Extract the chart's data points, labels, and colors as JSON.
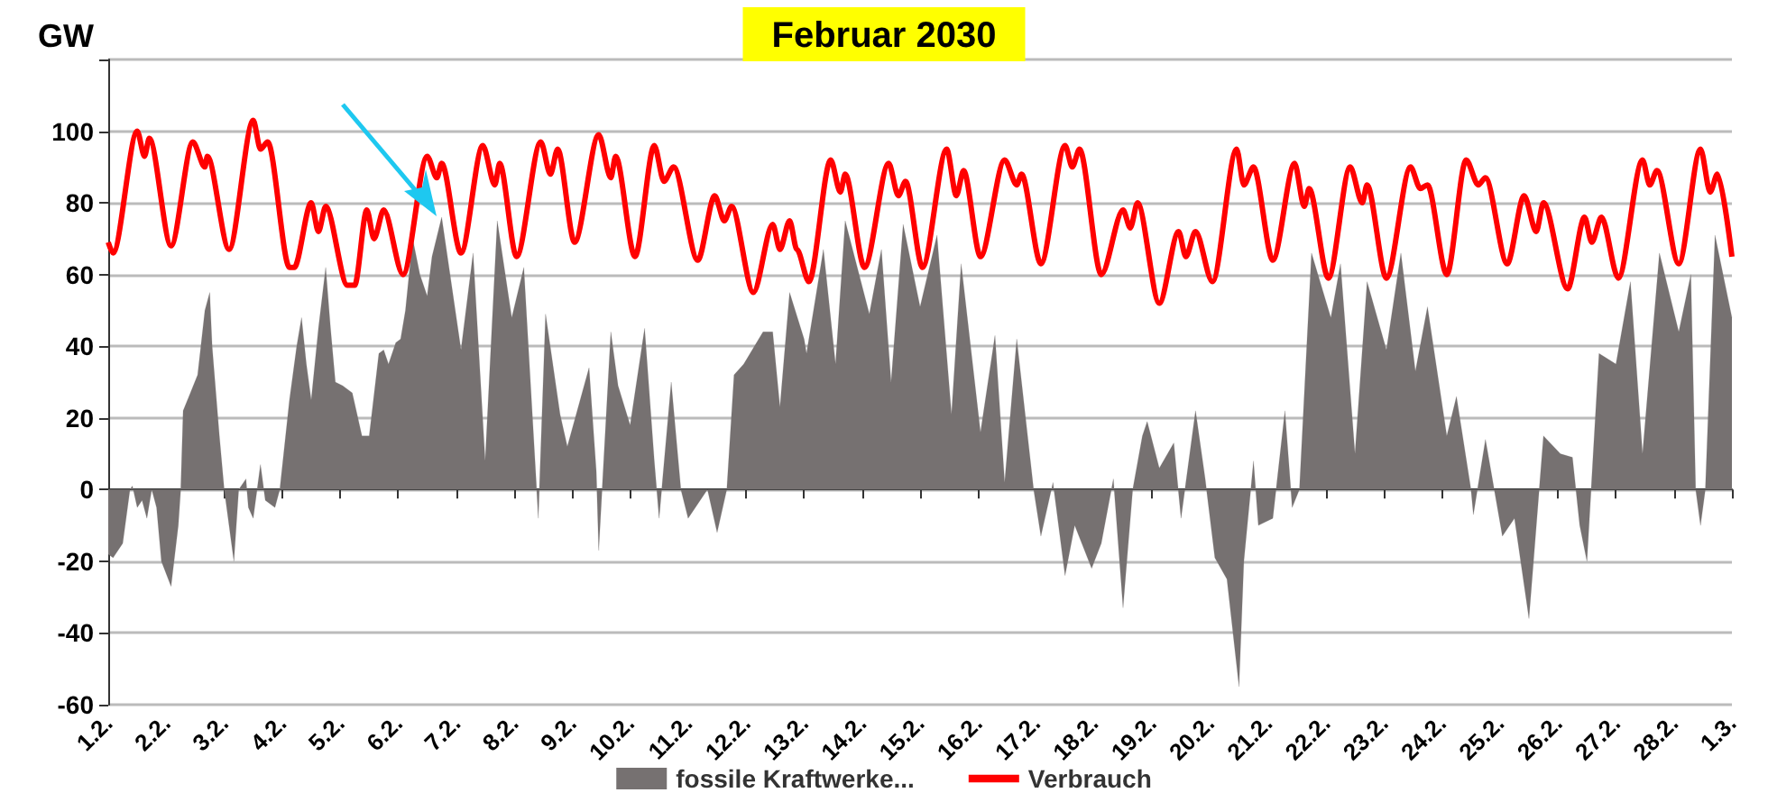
{
  "chart_data": {
    "type": "line",
    "title": "Februar 2030",
    "ylabel": "GW",
    "xlim": [
      "2030-02-01",
      "2030-03-01"
    ],
    "xticks": [
      {
        "value": "2030-02-01",
        "label": "1.2."
      },
      {
        "value": "2030-02-02",
        "label": "2.2."
      },
      {
        "value": "2030-02-03",
        "label": "3.2."
      },
      {
        "value": "2030-02-04",
        "label": "4.2."
      },
      {
        "value": "2030-02-05",
        "label": "5.2."
      },
      {
        "value": "2030-02-06",
        "label": "6.2."
      },
      {
        "value": "2030-02-07",
        "label": "7.2."
      },
      {
        "value": "2030-02-08",
        "label": "8.2."
      },
      {
        "value": "2030-02-09",
        "label": "9.2."
      },
      {
        "value": "2030-02-10",
        "label": "10.2."
      },
      {
        "value": "2030-02-11",
        "label": "11.2."
      },
      {
        "value": "2030-02-12",
        "label": "12.2."
      },
      {
        "value": "2030-02-13",
        "label": "13.2."
      },
      {
        "value": "2030-02-14",
        "label": "14.2."
      },
      {
        "value": "2030-02-15",
        "label": "15.2."
      },
      {
        "value": "2030-02-16",
        "label": "16.2."
      },
      {
        "value": "2030-02-17",
        "label": "17.2."
      },
      {
        "value": "2030-02-18",
        "label": "18.2."
      },
      {
        "value": "2030-02-19",
        "label": "19.2."
      },
      {
        "value": "2030-02-20",
        "label": "20.2."
      },
      {
        "value": "2030-02-21",
        "label": "21.2."
      },
      {
        "value": "2030-02-22",
        "label": "22.2."
      },
      {
        "value": "2030-02-23",
        "label": "23.2."
      },
      {
        "value": "2030-02-24",
        "label": "24.2."
      },
      {
        "value": "2030-02-25",
        "label": "25.2."
      },
      {
        "value": "2030-02-26",
        "label": "26.2."
      },
      {
        "value": "2030-02-27",
        "label": "27.2."
      },
      {
        "value": "2030-02-28",
        "label": "28.2."
      },
      {
        "value": "2030-03-01",
        "label": "1.3."
      }
    ],
    "ylim": [
      -60,
      120
    ],
    "yticks": [
      -60,
      -40,
      -20,
      0,
      20,
      40,
      60,
      80,
      100,
      {
        "value": 120,
        "label": null
      }
    ],
    "grid": "y",
    "legend": "bottom",
    "marker": "none",
    "line_style": "solid",
    "series": [
      {
        "name": "fossile Kraftwerke...",
        "type": "area",
        "color": "#767171",
        "x": [
          "2030-02-01T00:00",
          "2030-02-01T02:00",
          "2030-02-01T06:00",
          "2030-02-01T09:00",
          "2030-02-01T10:00",
          "2030-02-01T12:00",
          "2030-02-01T14:00",
          "2030-02-01T16:00",
          "2030-02-01T18:00",
          "2030-02-01T20:00",
          "2030-02-01T22:00",
          "2030-02-02T02:00",
          "2030-02-02T05:00",
          "2030-02-02T06:00",
          "2030-02-02T07:00",
          "2030-02-02T10:00",
          "2030-02-02T13:00",
          "2030-02-02T16:00",
          "2030-02-02T18:00",
          "2030-02-02T19:00",
          "2030-02-02T22:00",
          "2030-02-03T00:00",
          "2030-02-03T02:00",
          "2030-02-03T04:00",
          "2030-02-03T06:00",
          "2030-02-03T09:00",
          "2030-02-03T10:00",
          "2030-02-03T12:00",
          "2030-02-03T15:00",
          "2030-02-03T17:00",
          "2030-02-03T21:00",
          "2030-02-03T23:00",
          "2030-02-04T03:00",
          "2030-02-04T06:00",
          "2030-02-04T08:00",
          "2030-02-04T10:00",
          "2030-02-04T12:00",
          "2030-02-04T15:00",
          "2030-02-04T18:00",
          "2030-02-04T20:00",
          "2030-02-04T22:00",
          "2030-02-05T01:00",
          "2030-02-05T05:00",
          "2030-02-05T09:00",
          "2030-02-05T12:00",
          "2030-02-05T16:00",
          "2030-02-05T18:00",
          "2030-02-05T20:00",
          "2030-02-05T23:00",
          "2030-02-06T01:00",
          "2030-02-06T03:00",
          "2030-02-06T06:00",
          "2030-02-06T09:00",
          "2030-02-06T12:00",
          "2030-02-06T14:00",
          "2030-02-06T18:00",
          "2030-02-07T02:00",
          "2030-02-07T07:00",
          "2030-02-07T12:00",
          "2030-02-07T17:00",
          "2030-02-07T23:00",
          "2030-02-08T04:00",
          "2030-02-08T10:00",
          "2030-02-08T13:00",
          "2030-02-08T19:00",
          "2030-02-08T22:00",
          "2030-02-09T07:00",
          "2030-02-09T10:00",
          "2030-02-09T11:00",
          "2030-02-09T16:00",
          "2030-02-09T19:00",
          "2030-02-10T00:00",
          "2030-02-10T06:00",
          "2030-02-10T10:00",
          "2030-02-10T12:00",
          "2030-02-10T17:00",
          "2030-02-10T21:00",
          "2030-02-11T00:00",
          "2030-02-11T08:00",
          "2030-02-11T12:00",
          "2030-02-11T16:00",
          "2030-02-11T19:00",
          "2030-02-11T23:00",
          "2030-02-12T07:00",
          "2030-02-12T11:00",
          "2030-02-12T14:00",
          "2030-02-12T18:00",
          "2030-02-13T00:00",
          "2030-02-13T01:00",
          "2030-02-13T08:00",
          "2030-02-13T13:00",
          "2030-02-13T17:00",
          "2030-02-14T03:00",
          "2030-02-14T08:00",
          "2030-02-14T12:00",
          "2030-02-14T17:00",
          "2030-02-15T00:00",
          "2030-02-15T07:00",
          "2030-02-15T13:00",
          "2030-02-15T17:00",
          "2030-02-16T01:00",
          "2030-02-16T07:00",
          "2030-02-16T11:00",
          "2030-02-16T16:00",
          "2030-02-16T23:00",
          "2030-02-17T02:00",
          "2030-02-17T07:00",
          "2030-02-17T12:00",
          "2030-02-17T16:00",
          "2030-02-17T23:00",
          "2030-02-18T03:00",
          "2030-02-18T08:00",
          "2030-02-18T12:00",
          "2030-02-18T16:00",
          "2030-02-18T20:00",
          "2030-02-18T22:00",
          "2030-02-19T03:00",
          "2030-02-19T09:00",
          "2030-02-19T12:00",
          "2030-02-19T18:00",
          "2030-02-19T22:00",
          "2030-02-20T02:00",
          "2030-02-20T07:00",
          "2030-02-20T12:00",
          "2030-02-20T14:00",
          "2030-02-20T18:00",
          "2030-02-20T20:00",
          "2030-02-21T02:00",
          "2030-02-21T07:00",
          "2030-02-21T10:00",
          "2030-02-21T13:00",
          "2030-02-21T18:00",
          "2030-02-22T02:00",
          "2030-02-22T06:00",
          "2030-02-22T12:00",
          "2030-02-22T17:00",
          "2030-02-23T01:00",
          "2030-02-23T07:00",
          "2030-02-23T13:00",
          "2030-02-23T18:00",
          "2030-02-24T02:00",
          "2030-02-24T06:00",
          "2030-02-24T12:00",
          "2030-02-24T13:00",
          "2030-02-24T18:00",
          "2030-02-25T01:00",
          "2030-02-25T06:00",
          "2030-02-25T12:00",
          "2030-02-25T18:00",
          "2030-02-26T01:00",
          "2030-02-26T06:00",
          "2030-02-26T09:00",
          "2030-02-26T12:00",
          "2030-02-26T17:00",
          "2030-02-27T00:00",
          "2030-02-27T06:00",
          "2030-02-27T11:00",
          "2030-02-27T18:00",
          "2030-02-28T02:00",
          "2030-02-28T07:00",
          "2030-02-28T09:00",
          "2030-02-28T11:00",
          "2030-02-28T13:00",
          "2030-02-28T17:00",
          "2030-03-01T00:00"
        ],
        "values": [
          -18,
          -19,
          -15,
          0,
          1,
          -5,
          -3,
          -8,
          0,
          -5,
          -20,
          -27,
          -10,
          0,
          22,
          27,
          32,
          50,
          55,
          40,
          15,
          0,
          -10,
          -20,
          0,
          3,
          -5,
          -8,
          7,
          -3,
          -5,
          0,
          25,
          40,
          48,
          35,
          25,
          45,
          62,
          45,
          30,
          29,
          27,
          15,
          15,
          38,
          39,
          35,
          41,
          42,
          50,
          70,
          60,
          54,
          65,
          76,
          39,
          66,
          8,
          75,
          48,
          62,
          -8,
          49,
          21,
          12,
          34,
          5,
          -17,
          44,
          29,
          18,
          45,
          8,
          -8,
          30,
          0,
          -8,
          0,
          -12,
          0,
          32,
          35,
          44,
          44,
          23,
          55,
          42,
          38,
          67,
          35,
          75,
          49,
          67,
          30,
          74,
          51,
          71,
          21,
          63,
          16,
          43,
          2,
          42,
          0,
          -13,
          2,
          -24,
          -10,
          -22,
          -15,
          3,
          -33,
          0,
          15,
          19,
          6,
          13,
          -8,
          22,
          3,
          -19,
          -25,
          -55,
          -20,
          8,
          -10,
          -8,
          22,
          -5,
          0,
          66,
          48,
          63,
          10,
          58,
          39,
          66,
          33,
          51,
          15,
          26,
          0,
          -7,
          14,
          -13,
          -8,
          -36,
          15,
          10,
          9,
          -10,
          -20,
          38,
          35,
          58,
          10,
          66,
          44,
          60,
          0,
          -10,
          0,
          71,
          48
        ]
      },
      {
        "name": "Verbrauch",
        "color": "#ff0000",
        "x": [
          "2030-02-01T00:00",
          "2030-02-01T02:00",
          "2030-02-01T12:00",
          "2030-02-01T15:00",
          "2030-02-01T17:00",
          "2030-02-02T02:00",
          "2030-02-02T11:00",
          "2030-02-02T16:00",
          "2030-02-02T17:00",
          "2030-02-03T02:00",
          "2030-02-03T12:00",
          "2030-02-03T15:00",
          "2030-02-03T18:00",
          "2030-02-04T03:00",
          "2030-02-04T05:00",
          "2030-02-04T12:00",
          "2030-02-04T15:00",
          "2030-02-04T18:00",
          "2030-02-05T03:00",
          "2030-02-05T06:00",
          "2030-02-05T11:00",
          "2030-02-05T14:00",
          "2030-02-05T18:00",
          "2030-02-06T02:00",
          "2030-02-06T12:00",
          "2030-02-06T16:00",
          "2030-02-06T18:00",
          "2030-02-07T02:00",
          "2030-02-07T11:00",
          "2030-02-07T16:00",
          "2030-02-07T18:00",
          "2030-02-08T01:00",
          "2030-02-08T11:00",
          "2030-02-08T15:00",
          "2030-02-08T18:00",
          "2030-02-09T01:00",
          "2030-02-09T11:00",
          "2030-02-09T16:00",
          "2030-02-09T18:00",
          "2030-02-10T02:00",
          "2030-02-10T10:00",
          "2030-02-10T14:00",
          "2030-02-10T18:00",
          "2030-02-11T04:00",
          "2030-02-11T11:00",
          "2030-02-11T15:00",
          "2030-02-11T18:00",
          "2030-02-12T03:00",
          "2030-02-12T11:00",
          "2030-02-12T14:00",
          "2030-02-12T18:00",
          "2030-02-12T21:00",
          "2030-02-13T02:00",
          "2030-02-13T11:00",
          "2030-02-13T15:00",
          "2030-02-13T17:00",
          "2030-02-14T01:00",
          "2030-02-14T11:00",
          "2030-02-14T15:00",
          "2030-02-14T18:00",
          "2030-02-15T01:00",
          "2030-02-15T11:00",
          "2030-02-15T15:00",
          "2030-02-15T18:00",
          "2030-02-16T01:00",
          "2030-02-16T11:00",
          "2030-02-16T16:00",
          "2030-02-16T18:00",
          "2030-02-17T02:00",
          "2030-02-17T12:00",
          "2030-02-17T15:00",
          "2030-02-17T18:00",
          "2030-02-18T03:00",
          "2030-02-18T12:00",
          "2030-02-18T15:00",
          "2030-02-18T18:00",
          "2030-02-19T03:00",
          "2030-02-19T11:00",
          "2030-02-19T14:00",
          "2030-02-19T18:00",
          "2030-02-20T01:00",
          "2030-02-20T11:00",
          "2030-02-20T14:00",
          "2030-02-20T18:00",
          "2030-02-21T02:00",
          "2030-02-21T11:00",
          "2030-02-21T15:00",
          "2030-02-21T17:00",
          "2030-02-22T01:00",
          "2030-02-22T10:00",
          "2030-02-22T15:00",
          "2030-02-22T17:00",
          "2030-02-23T01:00",
          "2030-02-23T11:00",
          "2030-02-23T15:00",
          "2030-02-23T18:00",
          "2030-02-24T02:00",
          "2030-02-24T10:00",
          "2030-02-24T15:00",
          "2030-02-24T18:00",
          "2030-02-25T03:00",
          "2030-02-25T10:00",
          "2030-02-25T15:00",
          "2030-02-25T18:00",
          "2030-02-26T04:00",
          "2030-02-26T11:00",
          "2030-02-26T14:00",
          "2030-02-26T18:00",
          "2030-02-27T01:00",
          "2030-02-27T11:00",
          "2030-02-27T14:00",
          "2030-02-27T17:00",
          "2030-02-28T02:00",
          "2030-02-28T11:00",
          "2030-02-28T15:00",
          "2030-02-28T18:00",
          "2030-03-01T00:00"
        ],
        "values": [
          69,
          66,
          100,
          93,
          98,
          68,
          97,
          90,
          93,
          67,
          103,
          95,
          97,
          62,
          62,
          80,
          72,
          79,
          57,
          57,
          78,
          70,
          78,
          60,
          93,
          87,
          91,
          66,
          96,
          85,
          91,
          65,
          97,
          88,
          95,
          69,
          99,
          87,
          93,
          65,
          96,
          86,
          90,
          64,
          82,
          75,
          79,
          55,
          74,
          67,
          75,
          67,
          58,
          92,
          83,
          88,
          62,
          91,
          82,
          86,
          62,
          95,
          82,
          89,
          65,
          92,
          85,
          88,
          63,
          96,
          90,
          95,
          60,
          78,
          73,
          80,
          52,
          72,
          65,
          72,
          58,
          95,
          85,
          90,
          64,
          91,
          79,
          84,
          59,
          90,
          80,
          85,
          59,
          90,
          84,
          85,
          60,
          92,
          85,
          87,
          63,
          82,
          72,
          80,
          56,
          76,
          69,
          76,
          59,
          92,
          85,
          89,
          63,
          95,
          83,
          88,
          65
        ]
      }
    ]
  }
}
